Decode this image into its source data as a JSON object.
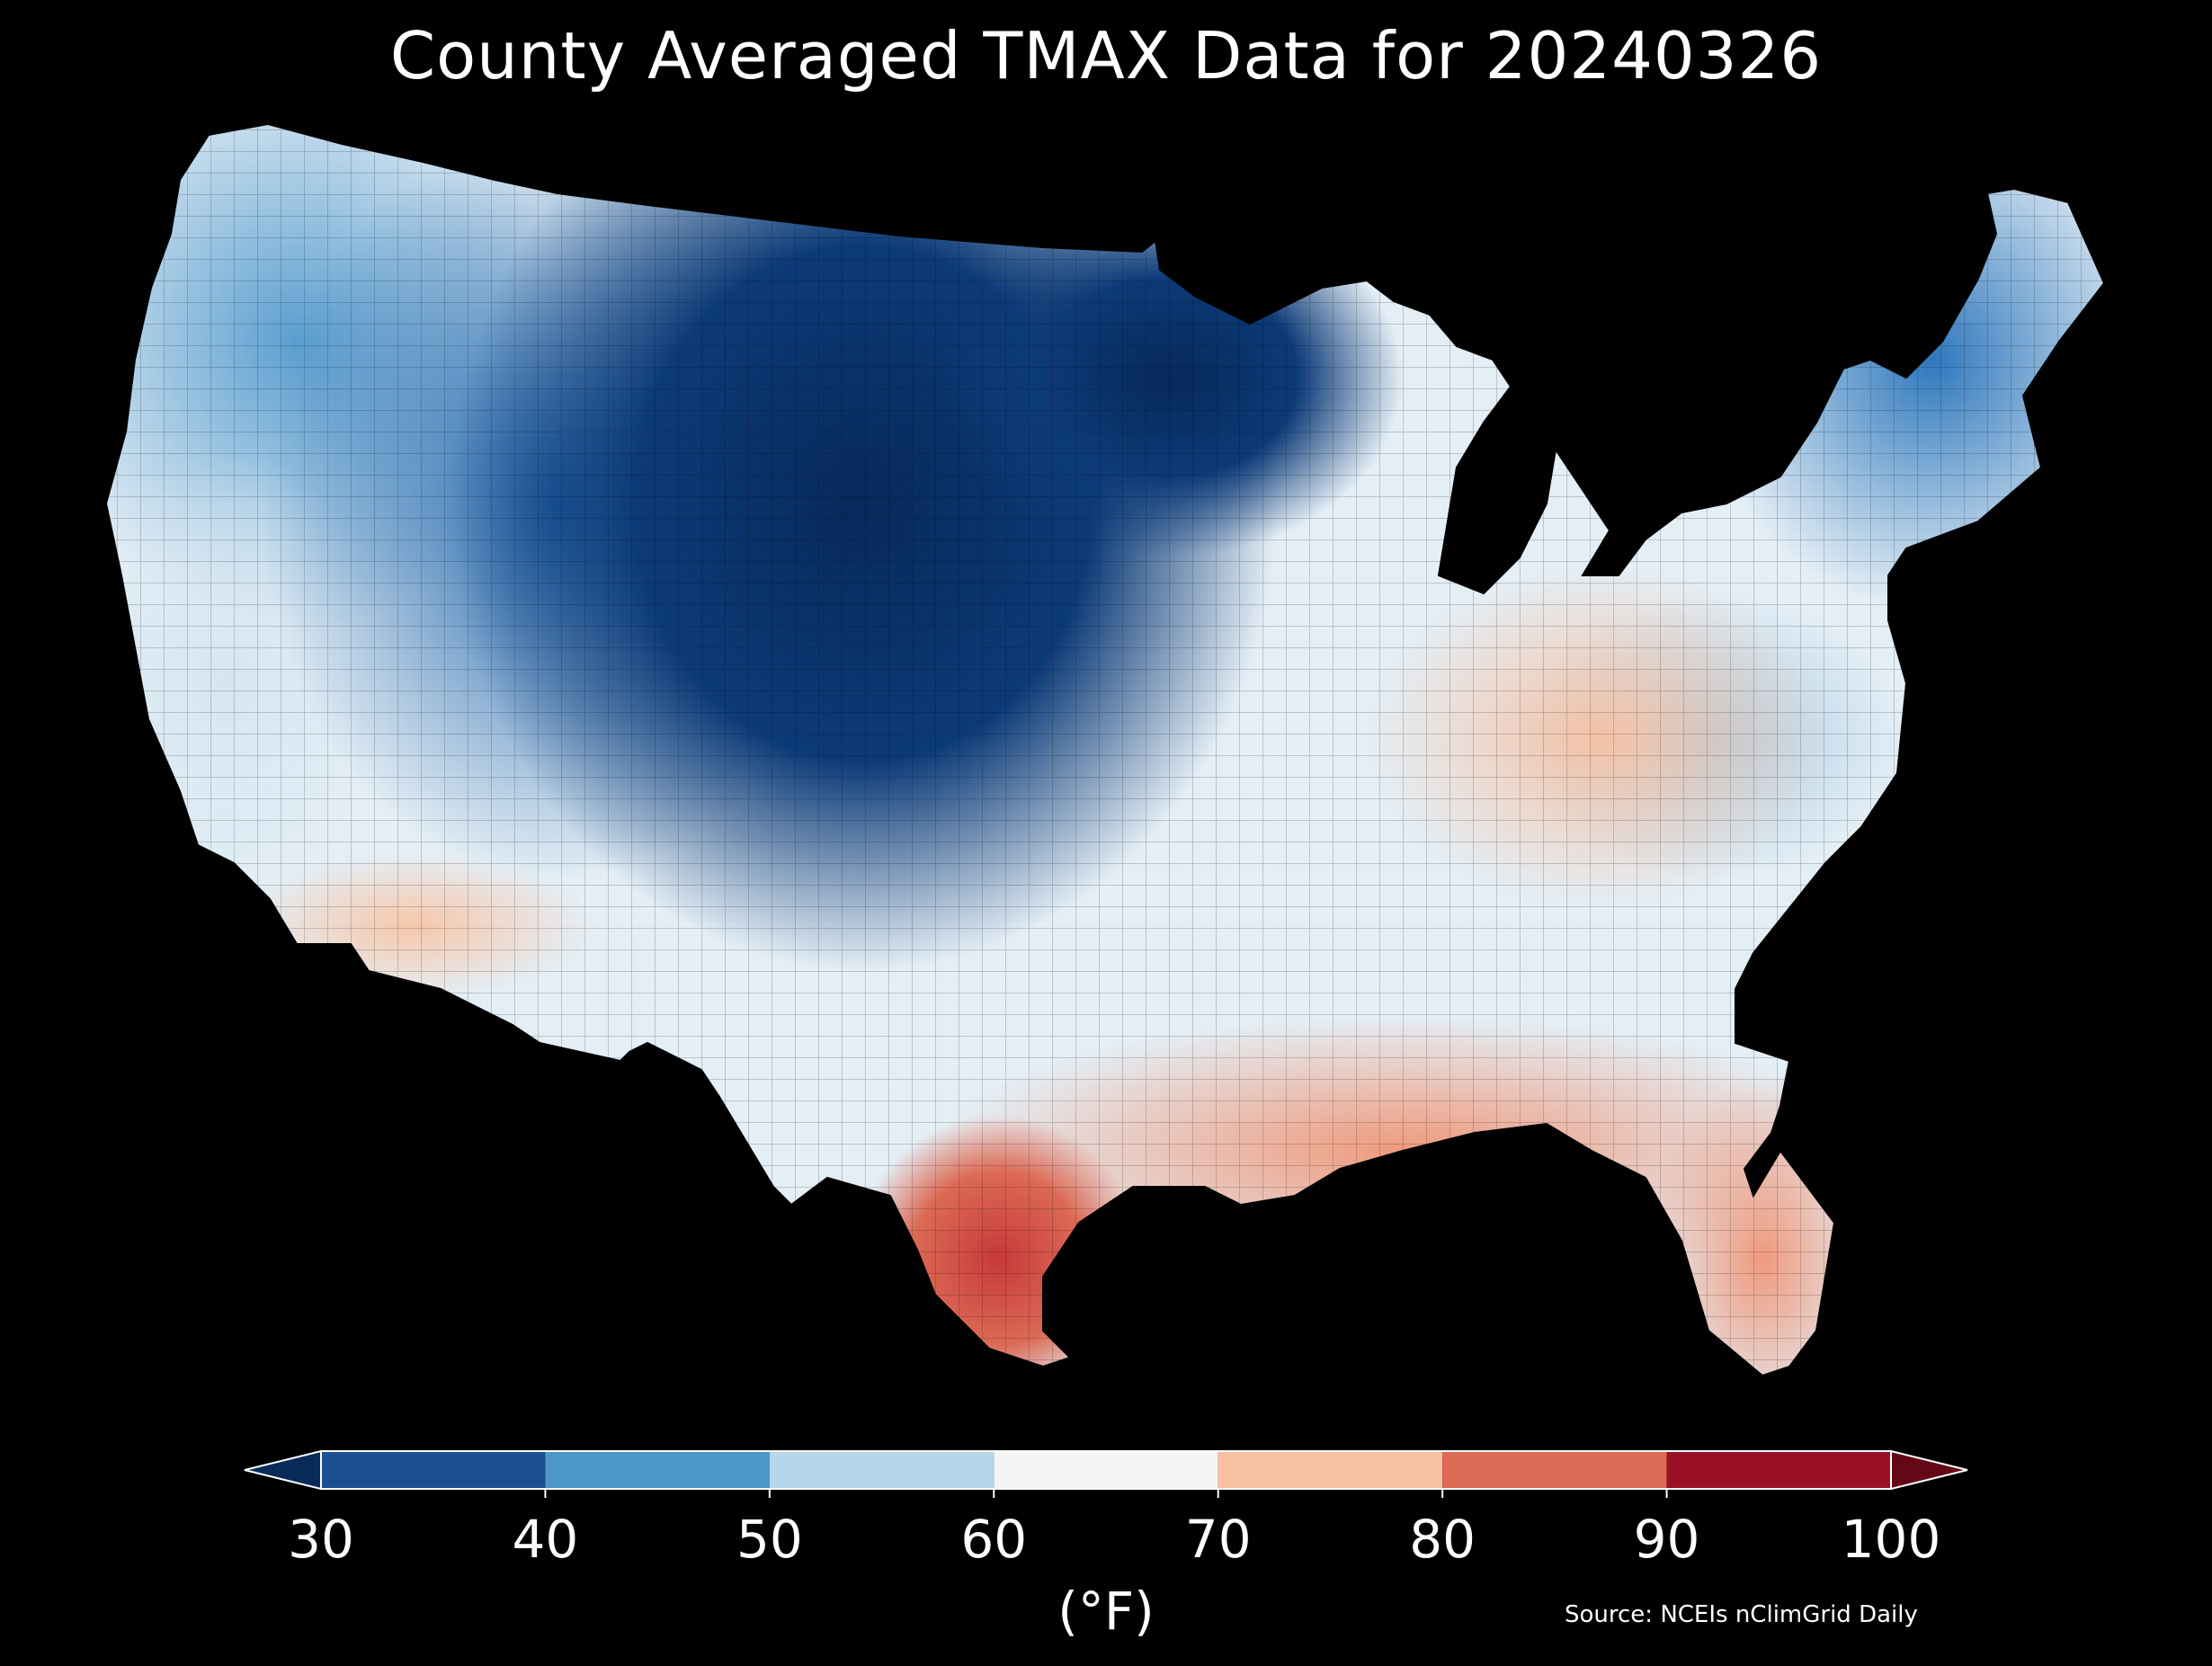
{
  "title": "County Averaged TMAX Data for 20240326",
  "colorbar": {
    "ticks": [
      "30",
      "40",
      "50",
      "60",
      "70",
      "80",
      "90",
      "100"
    ],
    "unit": "(°F)",
    "colors": [
      "#1b4f90",
      "#4d96c8",
      "#b6d6e9",
      "#f5f5f5",
      "#f9c1a4",
      "#dc6a55",
      "#9a1025"
    ],
    "under_color": "#0a2b59",
    "over_color": "#640818"
  },
  "source": "Source: NCEIs nClimGrid Daily",
  "map": {
    "region": "contiguous-united-states",
    "units": "°F",
    "regional_values": {
      "northern-plains": 32,
      "upper-midwest": 35,
      "northern-rockies": 43,
      "pacific-northwest": 47,
      "california-coast": 58,
      "desert-southwest": 70,
      "great-lakes": 55,
      "ohio-valley": 72,
      "northeast": 46,
      "mid-atlantic": 55,
      "southeast": 72,
      "gulf-coast": 77,
      "florida": 80,
      "south-texas": 87
    }
  }
}
